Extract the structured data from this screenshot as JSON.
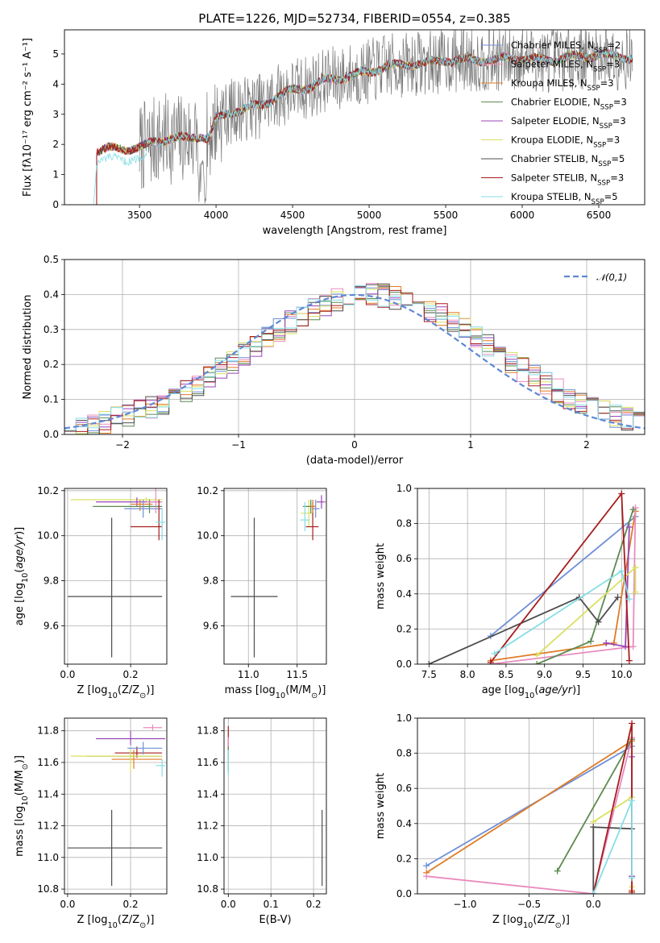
{
  "chart_data": [
    {
      "id": "spectrum",
      "type": "line",
      "title": "PLATE=1226, MJD=52734, FIBERID=0554, z=0.385",
      "xlabel": "wavelength [Angstrom, rest frame]",
      "ylabel": "Flux [fλ10⁻¹⁷ erg cm⁻² s⁻¹ A⁻¹]",
      "xlim": [
        3010,
        6800
      ],
      "ylim": [
        0,
        5.8
      ],
      "xticks": [
        3500,
        4000,
        4500,
        5000,
        5500,
        6000,
        6500
      ],
      "yticks": [
        0,
        1,
        2,
        3,
        4,
        5
      ],
      "grid": false,
      "legend_position": "top-right",
      "data_range": [
        3200,
        6720
      ],
      "anchors": {
        "x": [
          3200,
          3230,
          3300,
          3400,
          3500,
          3550,
          3600,
          3700,
          3800,
          3900,
          3950,
          4000,
          4100,
          4200,
          4300,
          4400,
          4500,
          4600,
          4700,
          4800,
          4900,
          5000,
          5100,
          5200,
          5300,
          5400,
          5500,
          5600,
          5700,
          5800,
          5900,
          6000,
          6100,
          6200,
          6300,
          6400,
          6500,
          6600,
          6720
        ],
        "y": [
          1.7,
          1.8,
          1.85,
          1.85,
          1.9,
          1.95,
          2.1,
          2.2,
          2.2,
          2.3,
          2.2,
          2.8,
          3.1,
          3.2,
          3.3,
          3.6,
          3.8,
          3.9,
          4.1,
          4.2,
          4.3,
          4.4,
          4.6,
          4.6,
          4.7,
          4.7,
          4.8,
          4.8,
          4.8,
          4.8,
          4.85,
          4.85,
          4.8,
          4.8,
          4.9,
          4.9,
          5.0,
          4.9,
          4.9
        ]
      },
      "series": [
        {
          "name": "Chabrier MILES, N$_{SSP}$=2",
          "color": "#6f8fd6"
        },
        {
          "name": "Salpeter MILES, N$_{SSP}$=3",
          "color": "#e98bbe"
        },
        {
          "name": "Kroupa MILES, N$_{SSP}$=3",
          "color": "#e07b25"
        },
        {
          "name": "Chabrier ELODIE, N$_{SSP}$=3",
          "color": "#5b8a50"
        },
        {
          "name": "Salpeter ELODIE, N$_{SSP}$=3",
          "color": "#9a45b8"
        },
        {
          "name": "Kroupa ELODIE, N$_{SSP}$=3",
          "color": "#d9e060"
        },
        {
          "name": "Chabrier STELIB, N$_{SSP}$=5",
          "color": "#4d4d4d"
        },
        {
          "name": "Salpeter STELIB, N$_{SSP}$=3",
          "color": "#a71d1d"
        },
        {
          "name": "Kroupa STELIB, N$_{SSP}$=5",
          "color": "#86dee6"
        }
      ]
    },
    {
      "id": "residuals",
      "type": "line",
      "xlabel": "(data-model)/error",
      "ylabel": "Normed distribution",
      "xlim": [
        -2.5,
        2.5
      ],
      "ylim": [
        0,
        0.5
      ],
      "xticks": [
        -2,
        -1,
        0,
        1,
        2
      ],
      "yticks": [
        0.0,
        0.1,
        0.2,
        0.3,
        0.4,
        0.5
      ],
      "grid": true,
      "legend_position": "top-right",
      "reference": {
        "name": "$\\mathcal{N}(0,1)$",
        "color": "#5e88d4",
        "mean": 0,
        "sigma": 1
      },
      "bin_width": 0.1,
      "series_colors": [
        "#6f8fd6",
        "#e98bbe",
        "#e07b25",
        "#5b8a50",
        "#9a45b8",
        "#d9e060",
        "#4d4d4d",
        "#a71d1d",
        "#86dee6"
      ]
    },
    {
      "id": "age_vs_Z",
      "type": "scatter",
      "xlabel": "Z [log$_{10}$(Z/Z$_\\odot$)]",
      "ylabel": "age  [log$_{10}$($age/yr$)]",
      "xlim": [
        -0.01,
        0.315
      ],
      "ylim": [
        9.43,
        10.21
      ],
      "xticks": [
        0.0,
        0.2
      ],
      "yticks": [
        9.6,
        9.8,
        10.0,
        10.2
      ],
      "grid": true,
      "points": [
        {
          "x": 0.14,
          "y": 9.73,
          "xerr": [
            0.14,
            0.16
          ],
          "yerr": [
            0.27,
            0.35
          ],
          "color": "#4d4d4d"
        },
        {
          "x": 0.25,
          "y": 10.16,
          "xerr": [
            0.24,
            0.05
          ],
          "yerr": [
            0.01,
            0.01
          ],
          "color": "#d9e060"
        },
        {
          "x": 0.22,
          "y": 10.15,
          "xerr": [
            0.13,
            0.08
          ],
          "yerr": [
            0.02,
            0.02
          ],
          "color": "#9a45b8"
        },
        {
          "x": 0.26,
          "y": 10.13,
          "xerr": [
            0.18,
            0.04
          ],
          "yerr": [
            0.03,
            0.03
          ],
          "color": "#5b8a50"
        },
        {
          "x": 0.24,
          "y": 10.12,
          "xerr": [
            0.06,
            0.06
          ],
          "yerr": [
            0.04,
            0.04
          ],
          "color": "#6f8fd6"
        },
        {
          "x": 0.23,
          "y": 10.14,
          "xerr": [
            0.03,
            0.04
          ],
          "yerr": [
            0.03,
            0.02
          ],
          "color": "#e07b25"
        },
        {
          "x": 0.28,
          "y": 10.15,
          "xerr": [
            0.03,
            0.02
          ],
          "yerr": [
            0.05,
            0.06
          ],
          "color": "#e98bbe"
        },
        {
          "x": 0.29,
          "y": 10.04,
          "xerr": [
            0.09,
            0.01
          ],
          "yerr": [
            0.06,
            0.12
          ],
          "color": "#a71d1d"
        },
        {
          "x": 0.3,
          "y": 10.06,
          "xerr": [
            0.02,
            0.01
          ],
          "yerr": [
            0.08,
            0.06
          ],
          "color": "#86dee6"
        }
      ]
    },
    {
      "id": "age_vs_mass",
      "type": "scatter",
      "xlabel": "mass [log$_{10}$(M/M$_\\odot$)]",
      "ylabel": "",
      "xlim": [
        10.75,
        11.8
      ],
      "ylim": [
        9.43,
        10.21
      ],
      "xticks": [
        11.0,
        11.5
      ],
      "yticks": [
        9.6,
        9.8,
        10.0,
        10.2
      ],
      "grid": true,
      "points": [
        {
          "x": 11.06,
          "y": 9.73,
          "xerr": [
            0.24,
            0.24
          ],
          "yerr": [
            0.27,
            0.35
          ],
          "color": "#4d4d4d"
        },
        {
          "x": 11.62,
          "y": 10.1,
          "xerr": [
            0.08,
            0.05
          ],
          "yerr": [
            0.06,
            0.06
          ],
          "color": "#d9e060"
        },
        {
          "x": 11.64,
          "y": 10.13,
          "xerr": [
            0.08,
            0.05
          ],
          "yerr": [
            0.03,
            0.03
          ],
          "color": "#5b8a50"
        },
        {
          "x": 11.75,
          "y": 10.15,
          "xerr": [
            0.05,
            0.03
          ],
          "yerr": [
            0.03,
            0.03
          ],
          "color": "#9a45b8"
        },
        {
          "x": 11.82,
          "y": 10.15,
          "xerr": [
            0.04,
            0.03
          ],
          "yerr": [
            0.03,
            0.03
          ],
          "color": "#e98bbe"
        },
        {
          "x": 11.66,
          "y": 10.04,
          "xerr": [
            0.07,
            0.06
          ],
          "yerr": [
            0.06,
            0.11
          ],
          "color": "#a71d1d"
        },
        {
          "x": 11.58,
          "y": 10.07,
          "xerr": [
            0.05,
            0.05
          ],
          "yerr": [
            0.05,
            0.08
          ],
          "color": "#86dee6"
        },
        {
          "x": 11.69,
          "y": 10.12,
          "xerr": [
            0.04,
            0.04
          ],
          "yerr": [
            0.04,
            0.04
          ],
          "color": "#6f8fd6"
        },
        {
          "x": 11.66,
          "y": 10.13,
          "xerr": [
            0.03,
            0.03
          ],
          "yerr": [
            0.03,
            0.03
          ],
          "color": "#e07b25"
        }
      ]
    },
    {
      "id": "mass_weight_vs_age",
      "type": "line",
      "xlabel": "age  [log$_{10}$($age/yr$)]",
      "ylabel": "mass weight",
      "xlim": [
        7.35,
        10.3
      ],
      "ylim": [
        0,
        1.0
      ],
      "xticks": [
        7.5,
        8.0,
        8.5,
        9.0,
        9.5,
        10.0
      ],
      "yticks": [
        0.0,
        0.2,
        0.4,
        0.6,
        0.8,
        1.0
      ],
      "grid": true,
      "series": [
        {
          "color": "#6f8fd6",
          "x": [
            8.3,
            10.18
          ],
          "y": [
            0.16,
            0.84
          ]
        },
        {
          "color": "#e07b25",
          "x": [
            8.3,
            9.9,
            10.18
          ],
          "y": [
            0.02,
            0.12,
            0.87
          ]
        },
        {
          "color": "#e98bbe",
          "x": [
            8.3,
            10.15,
            10.18
          ],
          "y": [
            0.0,
            0.1,
            0.89
          ]
        },
        {
          "color": "#5b8a50",
          "x": [
            8.9,
            9.6,
            10.15
          ],
          "y": [
            0.0,
            0.13,
            0.88
          ]
        },
        {
          "color": "#9a45b8",
          "x": [
            9.8,
            10.05,
            10.1
          ],
          "y": [
            0.12,
            0.1,
            0.78
          ]
        },
        {
          "color": "#d9e060",
          "x": [
            8.9,
            10.18,
            10.18
          ],
          "y": [
            0.05,
            0.55,
            0.41
          ]
        },
        {
          "color": "#4d4d4d",
          "x": [
            7.5,
            9.45,
            9.7,
            9.95
          ],
          "y": [
            0.0,
            0.38,
            0.24,
            0.38
          ]
        },
        {
          "color": "#a71d1d",
          "x": [
            8.3,
            10.0,
            10.1
          ],
          "y": [
            0.01,
            0.97,
            0.02
          ]
        },
        {
          "color": "#86dee6",
          "x": [
            8.35,
            10.0,
            10.1
          ],
          "y": [
            0.06,
            0.53,
            0.37
          ]
        }
      ]
    },
    {
      "id": "mass_vs_Z",
      "type": "scatter",
      "xlabel": "Z [log$_{10}$(Z/Z$_\\odot$)]",
      "ylabel": "mass [log$_{10}$(M/M$_\\odot$)]",
      "xlim": [
        -0.01,
        0.315
      ],
      "ylim": [
        10.77,
        11.88
      ],
      "xticks": [
        0.0,
        0.2
      ],
      "yticks": [
        10.8,
        11.0,
        11.2,
        11.4,
        11.6,
        11.8
      ],
      "grid": true,
      "points": [
        {
          "x": 0.14,
          "y": 11.06,
          "xerr": [
            0.14,
            0.16
          ],
          "yerr": [
            0.24,
            0.24
          ],
          "color": "#4d4d4d"
        },
        {
          "x": 0.27,
          "y": 11.82,
          "xerr": [
            0.03,
            0.03
          ],
          "yerr": [
            0.02,
            0.02
          ],
          "color": "#e98bbe"
        },
        {
          "x": 0.2,
          "y": 11.75,
          "xerr": [
            0.11,
            0.11
          ],
          "yerr": [
            0.04,
            0.05
          ],
          "color": "#9a45b8"
        },
        {
          "x": 0.22,
          "y": 11.66,
          "xerr": [
            0.07,
            0.08
          ],
          "yerr": [
            0.03,
            0.04
          ],
          "color": "#a71d1d"
        },
        {
          "x": 0.24,
          "y": 11.69,
          "xerr": [
            0.05,
            0.06
          ],
          "yerr": [
            0.04,
            0.04
          ],
          "color": "#6f8fd6"
        },
        {
          "x": 0.2,
          "y": 11.64,
          "xerr": [
            0.14,
            0.1
          ],
          "yerr": [
            0.03,
            0.03
          ],
          "color": "#5b8a50"
        },
        {
          "x": 0.21,
          "y": 11.62,
          "xerr": [
            0.07,
            0.09
          ],
          "yerr": [
            0.06,
            0.06
          ],
          "color": "#e07b25"
        },
        {
          "x": 0.2,
          "y": 11.64,
          "xerr": [
            0.19,
            0.1
          ],
          "yerr": [
            0.1,
            0.04
          ],
          "color": "#d9e060"
        },
        {
          "x": 0.3,
          "y": 11.58,
          "xerr": [
            0.02,
            0.01
          ],
          "yerr": [
            0.07,
            0.04
          ],
          "color": "#86dee6"
        }
      ]
    },
    {
      "id": "mass_vs_ebv",
      "type": "scatter",
      "xlabel": "E(B-V)",
      "ylabel": "",
      "xlim": [
        -0.01,
        0.23
      ],
      "ylim": [
        10.77,
        11.88
      ],
      "xticks": [
        0.0,
        0.1,
        0.2
      ],
      "yticks": [
        10.8,
        11.0,
        11.2,
        11.4,
        11.6,
        11.8
      ],
      "grid": true,
      "points": [
        {
          "x": 0.22,
          "y": 11.06,
          "xerr": [
            0.0,
            0.0
          ],
          "yerr": [
            0.24,
            0.24
          ],
          "color": "#4d4d4d"
        },
        {
          "x": 0.0,
          "y": 11.75,
          "xerr": [
            0.0,
            0.0
          ],
          "yerr": [
            0.08,
            0.08
          ],
          "color": "#a71d1d"
        },
        {
          "x": 0.0,
          "y": 11.66,
          "xerr": [
            0.0,
            0.0
          ],
          "yerr": [
            0.1,
            0.1
          ],
          "color": "#e98bbe"
        },
        {
          "x": 0.0,
          "y": 11.62,
          "xerr": [
            0.0,
            0.0
          ],
          "yerr": [
            0.08,
            0.08
          ],
          "color": "#5b8a50"
        },
        {
          "x": 0.0,
          "y": 11.6,
          "xerr": [
            0.0,
            0.0
          ],
          "yerr": [
            0.08,
            0.08
          ],
          "color": "#86dee6"
        }
      ]
    },
    {
      "id": "mass_weight_vs_Z",
      "type": "line",
      "xlabel": "Z [log$_{10}$(Z/Z$_\\odot$)]",
      "ylabel": "mass weight",
      "xlim": [
        -1.37,
        0.4
      ],
      "ylim": [
        0,
        1.0
      ],
      "xticks": [
        -1.0,
        -0.5,
        0.0
      ],
      "yticks": [
        0.0,
        0.2,
        0.4,
        0.6,
        0.8,
        1.0
      ],
      "grid": true,
      "series": [
        {
          "color": "#6f8fd6",
          "x": [
            -1.3,
            0.3
          ],
          "y": [
            0.16,
            0.84
          ]
        },
        {
          "color": "#e07b25",
          "x": [
            -1.3,
            0.3,
            0.3
          ],
          "y": [
            0.12,
            0.87,
            0.02
          ]
        },
        {
          "color": "#e98bbe",
          "x": [
            -1.3,
            0.0,
            0.3
          ],
          "y": [
            0.1,
            0.0,
            0.89
          ]
        },
        {
          "color": "#5b8a50",
          "x": [
            -0.28,
            0.3
          ],
          "y": [
            0.13,
            0.88
          ]
        },
        {
          "color": "#9a45b8",
          "x": [
            0.3,
            0.3
          ],
          "y": [
            0.1,
            0.78
          ]
        },
        {
          "color": "#d9e060",
          "x": [
            0.0,
            0.3,
            0.3
          ],
          "y": [
            0.41,
            0.55,
            0.04
          ]
        },
        {
          "color": "#4d4d4d",
          "x": [
            0.0,
            0.0,
            0.3
          ],
          "y": [
            0.0,
            0.38,
            0.37
          ]
        },
        {
          "color": "#a71d1d",
          "x": [
            0.0,
            0.3,
            0.3
          ],
          "y": [
            0.0,
            0.97,
            0.01
          ]
        },
        {
          "color": "#86dee6",
          "x": [
            0.0,
            0.3,
            0.3
          ],
          "y": [
            0.0,
            0.53,
            0.09
          ]
        }
      ]
    }
  ]
}
